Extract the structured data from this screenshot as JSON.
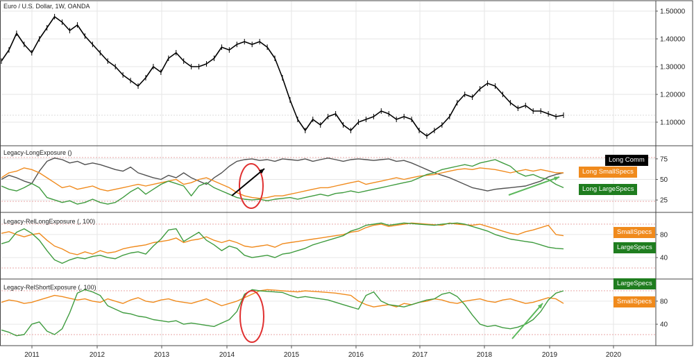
{
  "chart_data": [
    {
      "type": "line",
      "title": "Euro / U.S. Dollar, 1W, OANDA",
      "x_ticks": [
        "2011",
        "2012",
        "2013",
        "2014",
        "2015",
        "2016",
        "2017",
        "2018",
        "2019",
        "2020"
      ],
      "ylim": [
        1.03,
        1.52
      ],
      "y_ticks": [
        "1.50000",
        "1.40000",
        "1.30000",
        "1.20000",
        "1.10000"
      ],
      "series": [
        {
          "values": [
            1.32,
            1.36,
            1.42,
            1.38,
            1.35,
            1.4,
            1.44,
            1.48,
            1.46,
            1.43,
            1.45,
            1.41,
            1.38,
            1.35,
            1.32,
            1.3,
            1.27,
            1.25,
            1.23,
            1.26,
            1.3,
            1.28,
            1.33,
            1.35,
            1.32,
            1.3,
            1.3,
            1.31,
            1.33,
            1.37,
            1.36,
            1.38,
            1.39,
            1.38,
            1.39,
            1.37,
            1.33,
            1.26,
            1.18,
            1.11,
            1.07,
            1.11,
            1.09,
            1.12,
            1.13,
            1.09,
            1.07,
            1.1,
            1.11,
            1.12,
            1.14,
            1.13,
            1.11,
            1.12,
            1.11,
            1.07,
            1.05,
            1.07,
            1.09,
            1.12,
            1.17,
            1.2,
            1.19,
            1.22,
            1.24,
            1.23,
            1.2,
            1.17,
            1.15,
            1.16,
            1.14,
            1.14,
            1.13,
            1.12,
            1.125
          ]
        }
      ]
    },
    {
      "type": "line",
      "title": "Legacy-LongExposure ()",
      "ylim": [
        15,
        85
      ],
      "y_ticks": [
        "75",
        "50",
        "25"
      ],
      "series": [
        {
          "name": "Long Comm",
          "values": [
            50,
            55,
            52,
            48,
            45,
            60,
            72,
            76,
            74,
            70,
            72,
            68,
            70,
            68,
            65,
            62,
            60,
            65,
            58,
            55,
            52,
            50,
            55,
            52,
            58,
            52,
            48,
            44,
            52,
            58,
            66,
            72,
            74,
            75,
            73,
            74,
            72,
            75,
            74,
            73,
            75,
            72,
            74,
            76,
            74,
            72,
            74,
            75,
            74,
            73,
            74,
            75,
            72,
            73,
            70,
            66,
            62,
            58,
            55,
            52,
            48,
            44,
            40,
            38,
            36,
            38,
            39,
            40,
            41,
            42,
            45,
            48,
            53,
            56,
            58
          ]
        },
        {
          "name": "Long SmallSpecs",
          "values": [
            52,
            58,
            60,
            64,
            62,
            58,
            52,
            46,
            40,
            42,
            38,
            40,
            42,
            38,
            36,
            38,
            40,
            42,
            44,
            42,
            44,
            46,
            48,
            50,
            44,
            46,
            50,
            52,
            48,
            44,
            40,
            34,
            30,
            28,
            27,
            28,
            30,
            30,
            32,
            34,
            36,
            38,
            40,
            40,
            42,
            44,
            46,
            48,
            44,
            46,
            48,
            50,
            52,
            50,
            52,
            54,
            55,
            56,
            58,
            60,
            62,
            63,
            62,
            64,
            63,
            62,
            60,
            58,
            60,
            62,
            60,
            62,
            60,
            58,
            58
          ]
        },
        {
          "name": "Long LargeSpecs",
          "values": [
            42,
            38,
            36,
            40,
            45,
            40,
            28,
            25,
            22,
            24,
            20,
            22,
            26,
            22,
            20,
            22,
            28,
            35,
            40,
            32,
            38,
            44,
            48,
            45,
            42,
            30,
            42,
            46,
            40,
            36,
            32,
            28,
            26,
            25,
            26,
            24,
            26,
            27,
            28,
            26,
            28,
            30,
            32,
            30,
            33,
            34,
            36,
            34,
            36,
            38,
            40,
            42,
            44,
            46,
            48,
            52,
            56,
            58,
            62,
            64,
            66,
            68,
            66,
            70,
            72,
            74,
            70,
            66,
            58,
            54,
            56,
            52,
            50,
            44,
            40
          ]
        }
      ]
    },
    {
      "type": "line",
      "title": "Legacy-RelLongExposure (, 100)",
      "ylim": [
        10,
        110
      ],
      "y_ticks": [
        "80",
        "40"
      ],
      "series": [
        {
          "name": "SmallSpecs",
          "values": [
            82,
            85,
            80,
            76,
            80,
            82,
            70,
            60,
            55,
            48,
            45,
            50,
            46,
            52,
            48,
            50,
            55,
            58,
            60,
            62,
            66,
            68,
            70,
            74,
            66,
            70,
            72,
            76,
            70,
            66,
            70,
            66,
            60,
            58,
            60,
            62,
            58,
            64,
            66,
            68,
            70,
            72,
            74,
            76,
            78,
            80,
            84,
            86,
            92,
            96,
            98,
            94,
            96,
            98,
            100,
            99,
            98,
            97,
            96,
            100,
            98,
            97,
            96,
            98,
            94,
            90,
            86,
            82,
            80,
            85,
            88,
            92,
            96,
            80,
            78
          ]
        },
        {
          "name": "LargeSpecs",
          "values": [
            64,
            68,
            84,
            90,
            82,
            70,
            52,
            36,
            30,
            36,
            40,
            38,
            42,
            44,
            40,
            38,
            44,
            48,
            50,
            46,
            60,
            72,
            88,
            90,
            68,
            76,
            84,
            70,
            62,
            52,
            60,
            56,
            44,
            40,
            42,
            44,
            40,
            46,
            48,
            52,
            56,
            62,
            66,
            70,
            74,
            78,
            86,
            90,
            96,
            98,
            100,
            96,
            98,
            100,
            99,
            98,
            97,
            96,
            98,
            99,
            100,
            98,
            94,
            90,
            86,
            80,
            76,
            72,
            70,
            68,
            66,
            62,
            58,
            56,
            55
          ]
        }
      ]
    },
    {
      "type": "line",
      "title": "Legacy-RelShortExposure (, 100)",
      "ylim": [
        10,
        110
      ],
      "y_ticks": [
        "80",
        "40"
      ],
      "series": [
        {
          "name": "SmallSpecs",
          "values": [
            78,
            82,
            80,
            76,
            78,
            82,
            86,
            90,
            88,
            85,
            82,
            84,
            80,
            78,
            84,
            80,
            76,
            82,
            86,
            80,
            78,
            82,
            84,
            80,
            78,
            76,
            80,
            84,
            78,
            72,
            76,
            80,
            86,
            92,
            98,
            100,
            99,
            98,
            97,
            96,
            98,
            97,
            96,
            95,
            94,
            92,
            90,
            80,
            74,
            70,
            72,
            74,
            70,
            76,
            74,
            78,
            80,
            84,
            82,
            78,
            76,
            80,
            82,
            84,
            80,
            78,
            82,
            84,
            80,
            76,
            78,
            82,
            86,
            84,
            76
          ]
        },
        {
          "name": "LargeSpecs",
          "values": [
            30,
            26,
            20,
            22,
            40,
            44,
            28,
            22,
            32,
            60,
            94,
            100,
            96,
            90,
            72,
            66,
            60,
            58,
            54,
            52,
            48,
            46,
            44,
            46,
            40,
            42,
            40,
            38,
            36,
            42,
            48,
            62,
            92,
            100,
            98,
            97,
            96,
            95,
            90,
            86,
            88,
            86,
            84,
            82,
            78,
            74,
            70,
            66,
            90,
            96,
            80,
            74,
            72,
            70,
            74,
            78,
            82,
            84,
            92,
            95,
            88,
            74,
            56,
            40,
            36,
            38,
            34,
            32,
            35,
            40,
            48,
            62,
            82,
            94,
            98
          ]
        }
      ]
    }
  ],
  "x_axis_ticks": [
    "2011",
    "2012",
    "2013",
    "2014",
    "2015",
    "2016",
    "2017",
    "2018",
    "2019",
    "2020"
  ],
  "colors": {
    "price": "#000000",
    "comm": "#505050",
    "small": "#f08a1c",
    "large": "#3e9b3e",
    "large_tag": "#1f7d1f",
    "grid": "#e6e6e6",
    "ref_line": "#e59a9a",
    "annotation_circle": "#e03030",
    "annotation_arrow_black": "#000000",
    "annotation_arrow_green": "#5cb85c"
  }
}
